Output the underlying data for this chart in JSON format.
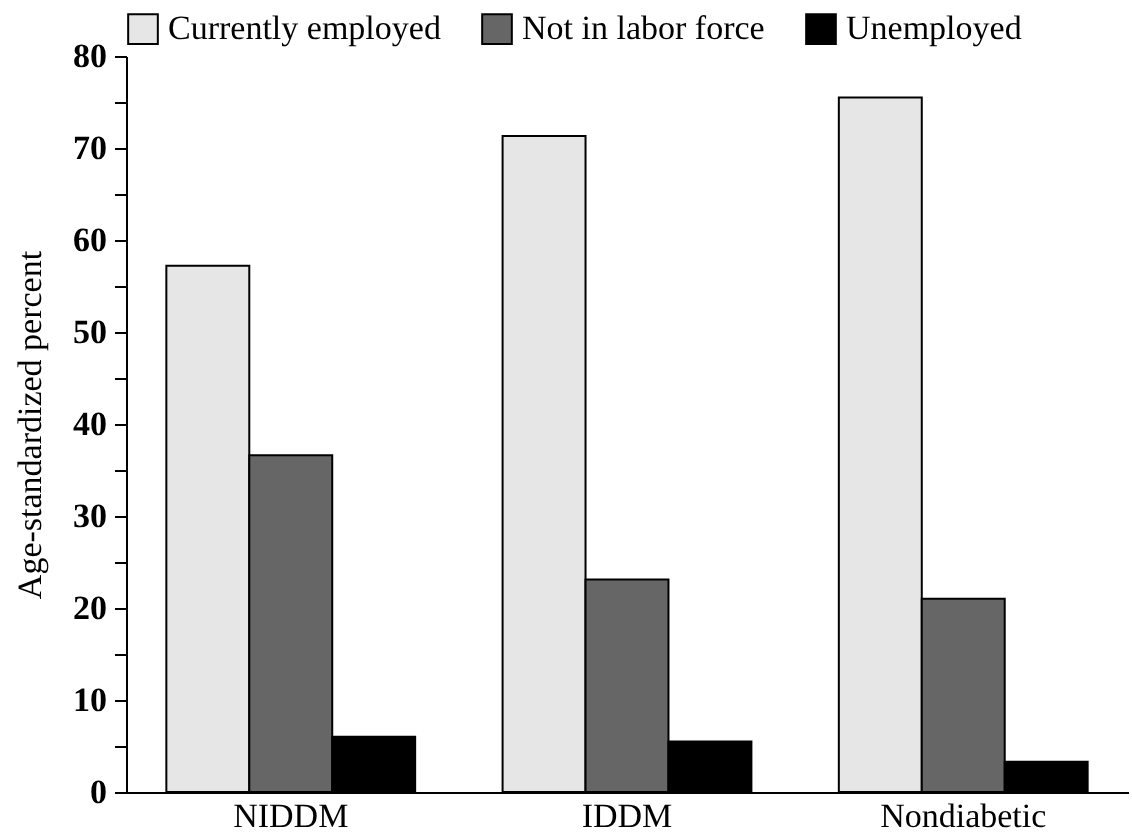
{
  "chart_data": {
    "type": "bar",
    "categories": [
      "NIDDM",
      "IDDM",
      "Nondiabetic"
    ],
    "ylabel": "Age-standardized percent",
    "series": [
      {
        "name": "Currently employed",
        "color": "#e6e6e6",
        "values": [
          57.2,
          71.3,
          75.5
        ]
      },
      {
        "name": "Not in labor force",
        "color": "#666666",
        "values": [
          36.6,
          23.1,
          21.0
        ]
      },
      {
        "name": "Unemployed",
        "color": "#000000",
        "values": [
          6.0,
          5.5,
          3.3
        ]
      }
    ],
    "ylim": [
      0,
      80
    ],
    "yticks": [
      0,
      {
        "value": 5,
        "label": null
      },
      10,
      {
        "value": 15,
        "label": null
      },
      20,
      {
        "value": 25,
        "label": null
      },
      30,
      {
        "value": 35,
        "label": null
      },
      40,
      {
        "value": 45,
        "label": null
      },
      50,
      {
        "value": 55,
        "label": null
      },
      60,
      {
        "value": 65,
        "label": null
      },
      70,
      {
        "value": 75,
        "label": null
      },
      80
    ],
    "grid": false,
    "legend": "top"
  }
}
